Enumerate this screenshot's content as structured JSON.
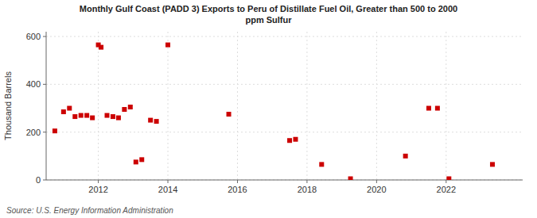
{
  "chart_data": {
    "type": "scatter",
    "title": "Monthly Gulf Coast (PADD 3) Exports to Peru of Distillate Fuel Oil, Greater than 500 to 2000\nppm Sulfur",
    "ylabel": "Thousand Barrels",
    "source": "Source: U.S. Energy Information Administration",
    "color": "#cc0000",
    "marker": "square",
    "grid": true,
    "xlim": [
      2010.5,
      2024.2
    ],
    "xticks": [
      2012,
      2014,
      2016,
      2018,
      2020,
      2022
    ],
    "ylim": [
      0,
      620
    ],
    "yticks": [
      0,
      200,
      400,
      600
    ],
    "x": [
      2010.75,
      2011.0,
      2011.17,
      2011.33,
      2011.5,
      2011.67,
      2011.83,
      2012.0,
      2012.08,
      2012.25,
      2012.42,
      2012.58,
      2012.75,
      2012.92,
      2013.08,
      2013.25,
      2013.5,
      2013.67,
      2014.0,
      2015.75,
      2017.5,
      2017.67,
      2018.42,
      2019.25,
      2020.83,
      2021.5,
      2021.75,
      2022.08,
      2023.33
    ],
    "values": [
      205,
      285,
      300,
      265,
      270,
      270,
      260,
      565,
      555,
      270,
      265,
      260,
      295,
      305,
      75,
      85,
      250,
      245,
      565,
      275,
      165,
      170,
      65,
      5,
      100,
      300,
      300,
      5,
      65
    ]
  }
}
